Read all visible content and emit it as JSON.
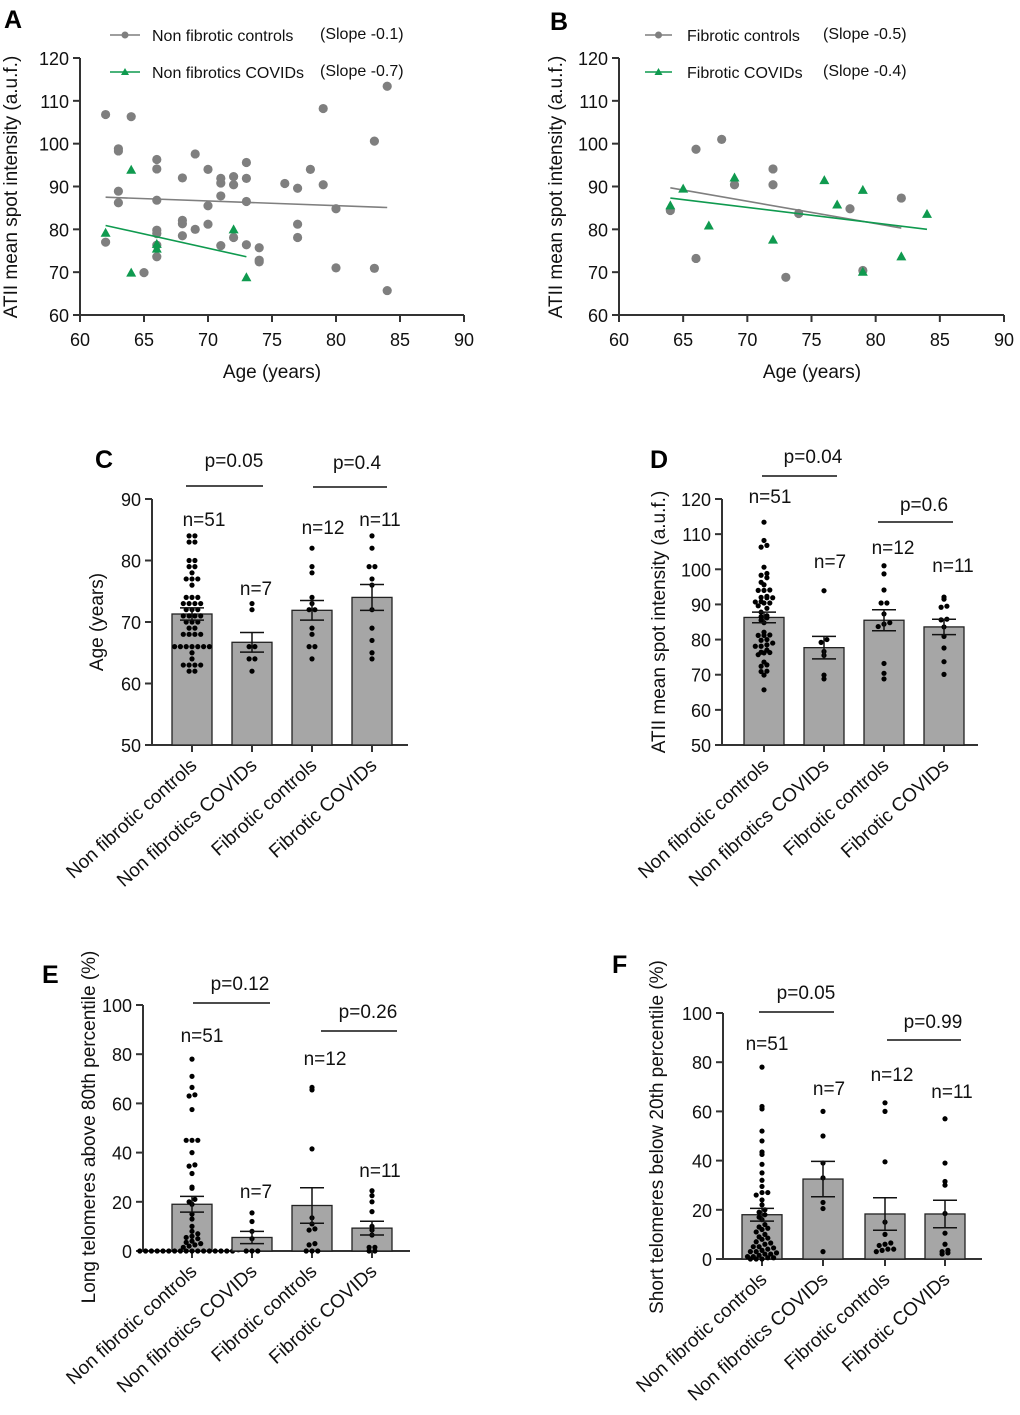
{
  "colors": {
    "control": "#7f7f7f",
    "covid": "#0f9a4f",
    "bar": "#a6a6a6",
    "dot": "#000000"
  },
  "chart_data": [
    {
      "panel": "A",
      "type": "scatter",
      "xlabel": "Age (years)",
      "ylabel": "ATII mean spot intensity (a.u.f.)",
      "xlim": [
        60,
        90
      ],
      "ylim": [
        60,
        120
      ],
      "xticks": [
        60,
        65,
        70,
        75,
        80,
        85,
        90
      ],
      "yticks": [
        60,
        70,
        80,
        90,
        100,
        110,
        120
      ],
      "legend": "top-left",
      "series": [
        {
          "name": "Non fibrotic controls",
          "slope_label": "(Slope -0.1)",
          "marker": "circle",
          "x": [
            62,
            64,
            63,
            63,
            63,
            63,
            62,
            66,
            66,
            66,
            66,
            66,
            66,
            66,
            65,
            68,
            68,
            68,
            68,
            69,
            69,
            70,
            70,
            70,
            71,
            71,
            71,
            71,
            72,
            72,
            72,
            73,
            73,
            73,
            73,
            74,
            74,
            74,
            76,
            77,
            77,
            77,
            78,
            79,
            79,
            80,
            80,
            83,
            83,
            84,
            84
          ],
          "y": [
            106.8,
            106.3,
            98.8,
            98.3,
            88.9,
            86.2,
            77,
            96.3,
            94.1,
            86.8,
            79.8,
            79,
            76.3,
            73.6,
            69.9,
            92,
            82.1,
            81.3,
            78.5,
            97.6,
            80,
            94,
            85.5,
            81.2,
            91.9,
            90.8,
            87.8,
            76.2,
            92.3,
            90.4,
            78.1,
            95.6,
            91.9,
            86.5,
            76.4,
            75.7,
            72.8,
            72.4,
            90.7,
            89.6,
            81.2,
            78.1,
            94,
            108.2,
            90.4,
            84.8,
            71,
            100.6,
            70.9,
            113.4,
            65.7
          ],
          "fit": [
            [
              62,
              87.5
            ],
            [
              84,
              85.1
            ]
          ]
        },
        {
          "name": "Non fibrotics COVIDs",
          "slope_label": "(Slope -0.7)",
          "marker": "triangle",
          "x": [
            62,
            64,
            64,
            66,
            66,
            72,
            73
          ],
          "y": [
            79.2,
            93.9,
            69.9,
            75.5,
            76.6,
            80,
            68.8
          ],
          "fit": [
            [
              62,
              80.9
            ],
            [
              73,
              73.6
            ]
          ]
        }
      ]
    },
    {
      "panel": "B",
      "type": "scatter",
      "xlabel": "Age (years)",
      "ylabel": "ATII mean spot intensity (a.u.f.)",
      "xlim": [
        60,
        90
      ],
      "ylim": [
        60,
        120
      ],
      "xticks": [
        60,
        65,
        70,
        75,
        80,
        85,
        90
      ],
      "yticks": [
        60,
        70,
        80,
        90,
        100,
        110,
        120
      ],
      "legend": "top-left",
      "series": [
        {
          "name": "Fibrotic controls",
          "slope_label": "(Slope -0.5)",
          "marker": "circle",
          "x": [
            64,
            66,
            68,
            66,
            69,
            72,
            72,
            73,
            74,
            78,
            79,
            82
          ],
          "y": [
            84.4,
            98.7,
            101,
            73.2,
            90.4,
            94.1,
            90.4,
            68.8,
            83.7,
            84.8,
            70.4,
            87.3
          ],
          "fit": [
            [
              64,
              89.7
            ],
            [
              82,
              80.3
            ]
          ]
        },
        {
          "name": "Fibrotic COVIDs",
          "slope_label": "(Slope -0.4)",
          "marker": "triangle",
          "x": [
            64,
            65,
            67,
            69,
            72,
            76,
            77,
            79,
            79,
            82,
            84
          ],
          "y": [
            85.6,
            89.5,
            80.9,
            92.1,
            77.6,
            91.5,
            85.8,
            89.2,
            70.1,
            73.7,
            83.6
          ],
          "fit": [
            [
              64,
              87.3
            ],
            [
              84,
              80
            ]
          ]
        }
      ]
    },
    {
      "panel": "C",
      "type": "bar",
      "ylabel": "Age (years)",
      "ylim": [
        50,
        90
      ],
      "yticks": [
        50,
        60,
        70,
        80,
        90
      ],
      "categories": [
        "Non fibrotic controls",
        "Non fibrotics COVIDs",
        "Fibrotic controls",
        "Fibrotic COVIDs"
      ],
      "values": [
        71.3,
        66.7,
        71.9,
        74.0
      ],
      "sem": [
        1.0,
        1.6,
        1.6,
        2.1
      ],
      "n_labels": [
        "n=51",
        "n=7",
        "n=12",
        "n=11"
      ],
      "comparisons": [
        {
          "groups": [
            0,
            1
          ],
          "label": "p=0.05"
        },
        {
          "groups": [
            2,
            3
          ],
          "label": "p=0.4"
        }
      ],
      "points": [
        [
          62,
          64,
          63,
          63,
          63,
          63,
          62,
          66,
          66,
          66,
          66,
          66,
          66,
          66,
          65,
          68,
          68,
          68,
          68,
          69,
          69,
          70,
          70,
          70,
          71,
          71,
          71,
          71,
          72,
          72,
          72,
          73,
          73,
          73,
          73,
          74,
          74,
          74,
          76,
          77,
          77,
          77,
          78,
          79,
          79,
          80,
          80,
          83,
          83,
          84,
          84
        ],
        [
          62,
          64,
          64,
          66,
          66,
          72,
          73
        ],
        [
          64,
          66,
          68,
          66,
          69,
          72,
          72,
          73,
          74,
          78,
          79,
          82
        ],
        [
          64,
          65,
          67,
          69,
          72,
          76,
          77,
          79,
          79,
          82,
          84
        ]
      ]
    },
    {
      "panel": "D",
      "type": "bar",
      "ylabel": "ATII mean spot intensity (a.u.f.)",
      "ylim": [
        50,
        120
      ],
      "yticks": [
        50,
        60,
        70,
        80,
        90,
        100,
        110,
        120
      ],
      "categories": [
        "Non fibrotic controls",
        "Non fibrotics COVIDs",
        "Fibrotic controls",
        "Fibrotic COVIDs"
      ],
      "values": [
        86.3,
        77.7,
        85.5,
        83.6
      ],
      "sem": [
        1.5,
        3.2,
        3.0,
        2.2
      ],
      "n_labels": [
        "n=51",
        "n=7",
        "n=12",
        "n=11"
      ],
      "comparisons": [
        {
          "groups": [
            0,
            1
          ],
          "label": "p=0.04"
        },
        {
          "groups": [
            2,
            3
          ],
          "label": "p=0.6"
        }
      ],
      "points": [
        [
          106.8,
          106.3,
          98.8,
          98.3,
          88.9,
          86.2,
          77,
          96.3,
          94.1,
          86.8,
          79.8,
          79,
          76.3,
          73.6,
          69.9,
          92,
          82.1,
          81.3,
          78.5,
          97.6,
          80,
          94,
          85.5,
          81.2,
          91.9,
          90.8,
          87.8,
          76.2,
          92.3,
          90.4,
          78.1,
          95.6,
          91.9,
          86.5,
          76.4,
          75.7,
          72.8,
          72.4,
          90.7,
          89.6,
          81.2,
          78.1,
          94,
          108.2,
          90.4,
          84.8,
          71,
          100.6,
          70.9,
          113.4,
          65.7
        ],
        [
          79.2,
          93.9,
          69.9,
          75.5,
          76.6,
          80,
          68.8
        ],
        [
          84.4,
          98.7,
          101,
          73.2,
          90.4,
          94.1,
          90.4,
          68.8,
          83.7,
          84.8,
          70.4,
          87.3
        ],
        [
          85.6,
          89.5,
          80.9,
          92.1,
          77.6,
          91.5,
          85.8,
          89.2,
          70.1,
          73.7,
          83.6
        ]
      ]
    },
    {
      "panel": "E",
      "type": "bar",
      "ylabel": "Long telomeres above 80th percentile (%)",
      "ylim": [
        0,
        100
      ],
      "yticks": [
        0,
        20,
        40,
        60,
        80,
        100
      ],
      "categories": [
        "Non fibrotic controls",
        "Non fibrotics COVIDs",
        "Fibrotic controls",
        "Fibrotic COVIDs"
      ],
      "values": [
        19.0,
        5.5,
        18.5,
        9.3
      ],
      "sem": [
        3.2,
        2.5,
        7.2,
        2.8
      ],
      "n_labels": [
        "n=51",
        "n=7",
        "n=12",
        "n=11"
      ],
      "comparisons": [
        {
          "groups": [
            0,
            1
          ],
          "label": "p=0.12"
        },
        {
          "groups": [
            2,
            3
          ],
          "label": "p=0.26"
        }
      ],
      "points": [
        [
          78,
          71,
          66.5,
          63.5,
          63,
          57.5,
          45,
          45,
          45,
          40,
          35,
          34.5,
          31.5,
          26,
          25.5,
          21,
          20,
          19,
          15,
          13,
          10,
          8,
          7,
          6,
          5.5,
          5,
          4,
          3.5,
          3,
          2.5,
          2,
          1.5,
          1,
          0.5,
          0,
          0,
          0,
          0,
          0,
          0,
          0,
          0,
          0,
          0,
          0,
          0,
          0,
          0,
          0,
          0,
          0
        ],
        [
          15.5,
          12,
          8,
          5,
          0,
          0,
          0
        ],
        [
          66.5,
          65.5,
          41.5,
          13.5,
          11,
          9,
          8.5,
          3,
          2.5,
          0,
          0,
          0
        ],
        [
          24.5,
          22.5,
          20,
          16,
          10,
          8.5,
          6.5,
          1.5,
          1.5,
          0,
          0
        ]
      ]
    },
    {
      "panel": "F",
      "type": "bar",
      "ylabel": "Short telomeres below 20th percentile (%)",
      "ylim": [
        0,
        100
      ],
      "yticks": [
        0,
        20,
        40,
        60,
        80,
        100
      ],
      "categories": [
        "Non fibrotic controls",
        "Non fibrotics COVIDs",
        "Fibrotic controls",
        "Fibrotic COVIDs"
      ],
      "values": [
        18.0,
        32.5,
        18.3,
        18.3
      ],
      "sem": [
        2.6,
        7.2,
        6.6,
        5.6
      ],
      "n_labels": [
        "n=51",
        "n=7",
        "n=12",
        "n=11"
      ],
      "comparisons": [
        {
          "groups": [
            0,
            1
          ],
          "label": "p=0.05"
        },
        {
          "groups": [
            2,
            3
          ],
          "label": "p=0.99"
        }
      ],
      "points": [
        [
          78,
          62,
          61,
          52,
          48,
          43.5,
          42.5,
          38.5,
          35,
          32,
          29.5,
          27,
          27,
          26,
          24,
          22,
          20,
          19,
          18,
          17,
          16,
          14,
          13,
          12.5,
          12,
          11,
          10,
          9,
          8.5,
          8,
          7,
          6.5,
          6,
          5,
          5,
          4.5,
          4,
          3.5,
          3,
          3,
          2.5,
          2,
          2,
          1.5,
          1,
          1,
          0.5,
          0.5,
          0,
          0,
          0
        ],
        [
          60,
          50,
          39,
          33,
          23,
          20.5,
          3
        ],
        [
          63.5,
          60,
          39.5,
          15,
          10,
          6.5,
          6,
          5.5,
          4,
          4,
          3.5,
          3
        ],
        [
          57,
          39,
          31.5,
          30,
          18.5,
          10.5,
          6,
          3.5,
          2.5,
          2,
          3
        ]
      ]
    }
  ]
}
